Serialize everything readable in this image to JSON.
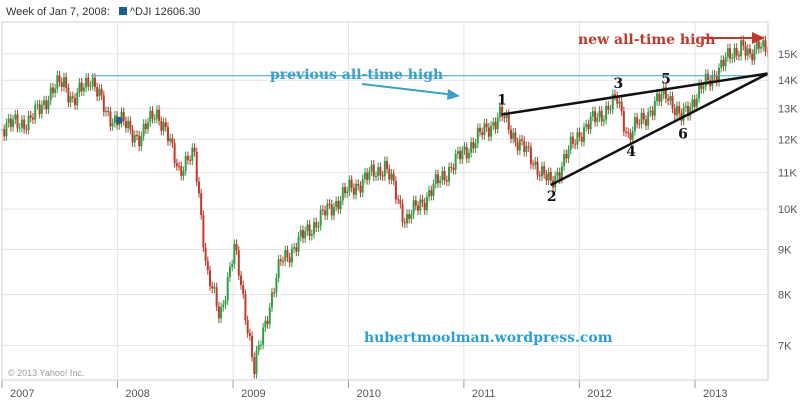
{
  "header": {
    "week_label": "Week of Jan 7, 2008:",
    "symbol_label": "^DJI 12606.30"
  },
  "colors": {
    "up": "#2f9e44",
    "down": "#c0392b",
    "grid": "#e3e3e3",
    "axis_text": "#555555",
    "prev_ath": "#3a9fc9",
    "new_ath": "#c0392b",
    "watermark": "#2a9fd6",
    "pattern": "#111111",
    "swatch": "#1f5f8b"
  },
  "chart_data": {
    "type": "candlestick",
    "title": "",
    "xlabel": "",
    "ylabel": "",
    "ylim": [
      6400,
      16300
    ],
    "y_scale": "log",
    "y_ticks": [
      "7K",
      "8K",
      "9K",
      "10K",
      "11K",
      "12K",
      "13K",
      "14K",
      "15K"
    ],
    "y_tick_values": [
      7000,
      8000,
      9000,
      10000,
      11000,
      12000,
      13000,
      14000,
      15000
    ],
    "x_ticks": [
      "2007",
      "2008",
      "2009",
      "2010",
      "2011",
      "2012",
      "2013"
    ],
    "x_range": [
      "2007-01-01",
      "2013-08-20"
    ],
    "grid": true,
    "weekly_closes": [
      {
        "date": "2007-01-01",
        "close": 12400
      },
      {
        "date": "2007-04-01",
        "close": 12600
      },
      {
        "date": "2007-06-01",
        "close": 13500
      },
      {
        "date": "2007-07-15",
        "close": 14000
      },
      {
        "date": "2007-08-15",
        "close": 13200
      },
      {
        "date": "2007-10-09",
        "close": 14165
      },
      {
        "date": "2007-11-26",
        "close": 12800
      },
      {
        "date": "2008-01-07",
        "close": 12606
      },
      {
        "date": "2008-03-15",
        "close": 12000
      },
      {
        "date": "2008-05-01",
        "close": 13000
      },
      {
        "date": "2008-07-15",
        "close": 11100
      },
      {
        "date": "2008-09-01",
        "close": 11500
      },
      {
        "date": "2008-10-10",
        "close": 8450
      },
      {
        "date": "2008-11-20",
        "close": 7550
      },
      {
        "date": "2009-01-06",
        "close": 9000
      },
      {
        "date": "2009-03-09",
        "close": 6550
      },
      {
        "date": "2009-06-01",
        "close": 8700
      },
      {
        "date": "2009-09-01",
        "close": 9500
      },
      {
        "date": "2010-01-01",
        "close": 10500
      },
      {
        "date": "2010-04-26",
        "close": 11200
      },
      {
        "date": "2010-07-01",
        "close": 9700
      },
      {
        "date": "2010-09-01",
        "close": 10300
      },
      {
        "date": "2011-01-01",
        "close": 11600
      },
      {
        "date": "2011-04-29",
        "close": 12800
      },
      {
        "date": "2011-06-15",
        "close": 12000
      },
      {
        "date": "2011-10-03",
        "close": 10650
      },
      {
        "date": "2012-01-01",
        "close": 12200
      },
      {
        "date": "2012-05-01",
        "close": 13300
      },
      {
        "date": "2012-06-04",
        "close": 12100
      },
      {
        "date": "2012-10-05",
        "close": 13600
      },
      {
        "date": "2012-11-15",
        "close": 12600
      },
      {
        "date": "2013-01-01",
        "close": 13400
      },
      {
        "date": "2013-05-28",
        "close": 15400
      },
      {
        "date": "2013-06-24",
        "close": 14700
      },
      {
        "date": "2013-07-23",
        "close": 15650
      },
      {
        "date": "2013-08-16",
        "close": 15100
      }
    ],
    "previous_all_time_high": {
      "date": "2007-10-09",
      "value": 14165
    },
    "pattern_lines": [
      {
        "from": {
          "date": "2011-04-29",
          "value": 12800
        },
        "to": {
          "date": "2013-08-20",
          "value": 14250
        }
      },
      {
        "from": {
          "date": "2011-10-03",
          "value": 10650
        },
        "to": {
          "date": "2013-08-20",
          "value": 14250
        }
      }
    ],
    "pattern_points": [
      {
        "label": "1",
        "date": "2011-04-29",
        "value": 12800
      },
      {
        "label": "2",
        "date": "2011-10-03",
        "value": 10650
      },
      {
        "label": "3",
        "date": "2012-05-01",
        "value": 13300
      },
      {
        "label": "4",
        "date": "2012-06-04",
        "value": 12100
      },
      {
        "label": "5",
        "date": "2012-10-05",
        "value": 13600
      },
      {
        "label": "6",
        "date": "2012-11-15",
        "value": 12600
      }
    ],
    "annotations": {
      "previous_ath_label": "previous all-time high",
      "new_ath_label": "new all-time high",
      "watermark": "hubertmoolman.wordpress.com",
      "copyright": "© 2013 Yahoo! Inc."
    },
    "highlight_point": {
      "date": "2008-01-07",
      "value": 12606
    }
  }
}
